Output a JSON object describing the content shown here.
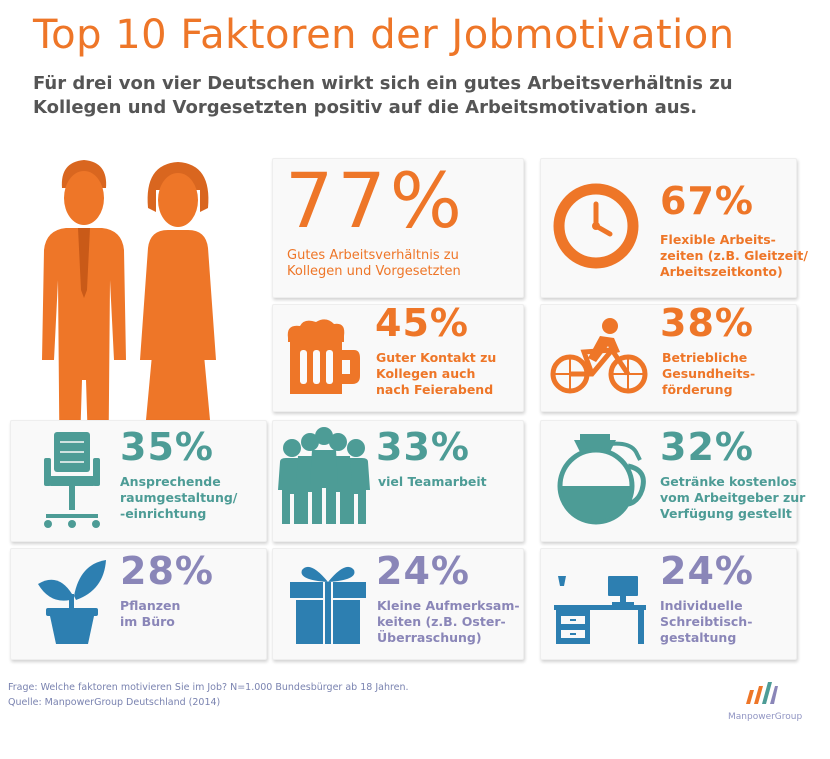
{
  "title": "Top 10 Faktoren der Jobmotivation",
  "subtitle": "Für drei von vier Deutschen wirkt sich ein gutes Arbeitsverhältnis zu Kollegen und Vorgesetzten positiv auf die Arbeitsmotivation aus.",
  "colors": {
    "orange": "#ee7628",
    "teal": "#4d9c96",
    "purple": "#8a86b8",
    "blue": "#2d7fb1"
  },
  "chart_data": {
    "type": "infographic",
    "title": "Top 10 Faktoren der Jobmotivation",
    "unit": "%",
    "factors": [
      {
        "rank": 1,
        "value": 77,
        "value_label": "77%",
        "label_lines": [
          "Gutes Arbeitsverhältnis zu",
          "Kollegen und Vorgesetzten"
        ],
        "icon": "business-people-icon"
      },
      {
        "rank": 2,
        "value": 67,
        "value_label": "67%",
        "label_lines": [
          "Flexible Arbeits-",
          "zeiten (z.B. Gleitzeit/",
          "Arbeitszeitkonto)"
        ],
        "icon": "clock-icon"
      },
      {
        "rank": 3,
        "value": 45,
        "value_label": "45%",
        "label_lines": [
          "Guter Kontakt zu",
          "Kollegen auch",
          "nach Feierabend"
        ],
        "icon": "beer-mug-icon"
      },
      {
        "rank": 4,
        "value": 38,
        "value_label": "38%",
        "label_lines": [
          "Betriebliche",
          "Gesundheits-",
          "förderung"
        ],
        "icon": "bicycle-icon"
      },
      {
        "rank": 5,
        "value": 35,
        "value_label": "35%",
        "label_lines": [
          "Ansprechende",
          "raumgestaltung/",
          "-einrichtung"
        ],
        "icon": "office-chair-icon"
      },
      {
        "rank": 6,
        "value": 33,
        "value_label": "33%",
        "label_lines": [
          "viel Teamarbeit"
        ],
        "icon": "team-icon"
      },
      {
        "rank": 7,
        "value": 32,
        "value_label": "32%",
        "label_lines": [
          "Getränke kostenlos",
          "vom Arbeitgeber zur",
          "Verfügung gestellt"
        ],
        "icon": "coffee-pot-icon"
      },
      {
        "rank": 8,
        "value": 28,
        "value_label": "28%",
        "label_lines": [
          "Pflanzen",
          "im Büro"
        ],
        "icon": "plant-icon"
      },
      {
        "rank": 9,
        "value": 24,
        "value_label": "24%",
        "label_lines": [
          "Kleine Aufmerksam-",
          "keiten (z.B. Oster-",
          "Überraschung)"
        ],
        "icon": "gift-icon"
      },
      {
        "rank": 10,
        "value": 24,
        "value_label": "24%",
        "label_lines": [
          "Individuelle",
          "Schreibtisch-",
          "gestaltung"
        ],
        "icon": "desk-icon"
      }
    ]
  },
  "footnote": {
    "question": "Frage: Welche faktoren motivieren Sie im Job? N=1.000 Bundesbürger ab 18 Jahren.",
    "source": "Quelle: ManpowerGroup Deutschland (2014)"
  },
  "logo": {
    "text": "ManpowerGroup"
  }
}
